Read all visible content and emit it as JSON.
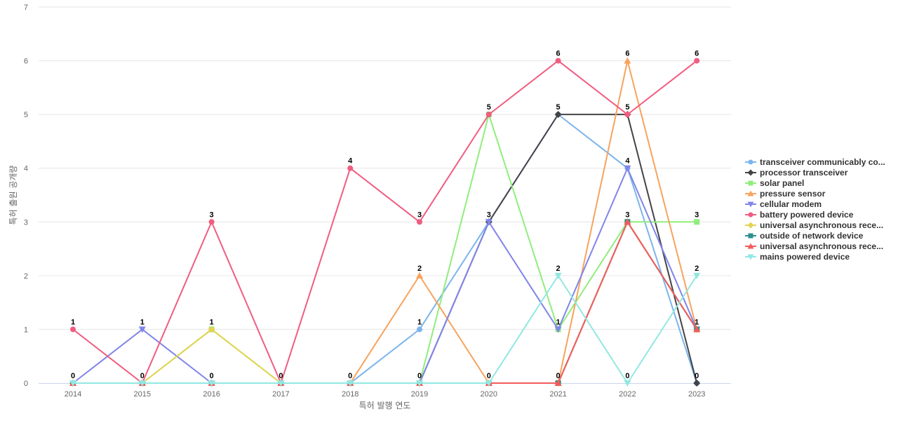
{
  "chart_data": {
    "type": "line",
    "xlabel": "특허 발행 연도",
    "ylabel": "특허 출원 공개량",
    "x": [
      "2014",
      "2015",
      "2016",
      "2017",
      "2018",
      "2019",
      "2020",
      "2021",
      "2022",
      "2023"
    ],
    "ylim": [
      0,
      7
    ],
    "yticks": [
      0,
      1,
      2,
      3,
      4,
      5,
      6,
      7
    ],
    "grid": true,
    "legend_position": "right",
    "data_labels": [
      {
        "x": "2014",
        "value": 1
      },
      {
        "x": "2014",
        "value": 0
      },
      {
        "x": "2015",
        "value": 1
      },
      {
        "x": "2015",
        "value": 0
      },
      {
        "x": "2016",
        "value": 3
      },
      {
        "x": "2016",
        "value": 1
      },
      {
        "x": "2016",
        "value": 0
      },
      {
        "x": "2017",
        "value": 0
      },
      {
        "x": "2018",
        "value": 4
      },
      {
        "x": "2018",
        "value": 0
      },
      {
        "x": "2019",
        "value": 3
      },
      {
        "x": "2019",
        "value": 2
      },
      {
        "x": "2019",
        "value": 1
      },
      {
        "x": "2019",
        "value": 0
      },
      {
        "x": "2020",
        "value": 5
      },
      {
        "x": "2020",
        "value": 3
      },
      {
        "x": "2020",
        "value": 0
      },
      {
        "x": "2021",
        "value": 6
      },
      {
        "x": "2021",
        "value": 5
      },
      {
        "x": "2021",
        "value": 2
      },
      {
        "x": "2021",
        "value": 1
      },
      {
        "x": "2021",
        "value": 0
      },
      {
        "x": "2022",
        "value": 6
      },
      {
        "x": "2022",
        "value": 5
      },
      {
        "x": "2022",
        "value": 4
      },
      {
        "x": "2022",
        "value": 3
      },
      {
        "x": "2022",
        "value": 0
      },
      {
        "x": "2023",
        "value": 6
      },
      {
        "x": "2023",
        "value": 3
      },
      {
        "x": "2023",
        "value": 2
      },
      {
        "x": "2023",
        "value": 1
      },
      {
        "x": "2023",
        "value": 0
      }
    ],
    "series": [
      {
        "name": "transceiver communicably co...",
        "color": "#7cb5ec",
        "marker": "circle",
        "values": [
          0,
          0,
          0,
          0,
          0,
          1,
          3,
          5,
          4,
          0
        ]
      },
      {
        "name": "processor transceiver",
        "color": "#434348",
        "marker": "diamond",
        "values": [
          0,
          0,
          0,
          0,
          0,
          0,
          3,
          5,
          5,
          0
        ]
      },
      {
        "name": "solar panel",
        "color": "#90ed7d",
        "marker": "square",
        "values": [
          0,
          0,
          1,
          0,
          0,
          0,
          5,
          1,
          3,
          3
        ]
      },
      {
        "name": "pressure sensor",
        "color": "#f7a35c",
        "marker": "triangle",
        "values": [
          0,
          0,
          0,
          0,
          0,
          2,
          0,
          0,
          6,
          1
        ]
      },
      {
        "name": "cellular modem",
        "color": "#8085e9",
        "marker": "triangle-down",
        "values": [
          0,
          1,
          0,
          0,
          0,
          0,
          3,
          1,
          4,
          1
        ]
      },
      {
        "name": "battery powered device",
        "color": "#f15c80",
        "marker": "circle",
        "values": [
          1,
          0,
          3,
          0,
          4,
          3,
          5,
          6,
          5,
          6
        ]
      },
      {
        "name": "universal asynchronous rece...",
        "color": "#e4d354",
        "marker": "diamond",
        "values": [
          0,
          0,
          1,
          0,
          0,
          0,
          0,
          0,
          3,
          1
        ]
      },
      {
        "name": "outside of network device",
        "color": "#2b908f",
        "marker": "square",
        "values": [
          0,
          0,
          0,
          0,
          0,
          0,
          0,
          0,
          3,
          1
        ]
      },
      {
        "name": "universal asynchronous rece...",
        "color": "#f45b5b",
        "marker": "triangle",
        "values": [
          0,
          0,
          0,
          0,
          0,
          0,
          0,
          0,
          3,
          1
        ]
      },
      {
        "name": "mains powered device",
        "color": "#91e8e1",
        "marker": "triangle-down",
        "values": [
          0,
          0,
          0,
          0,
          0,
          0,
          0,
          2,
          0,
          2
        ]
      }
    ]
  }
}
